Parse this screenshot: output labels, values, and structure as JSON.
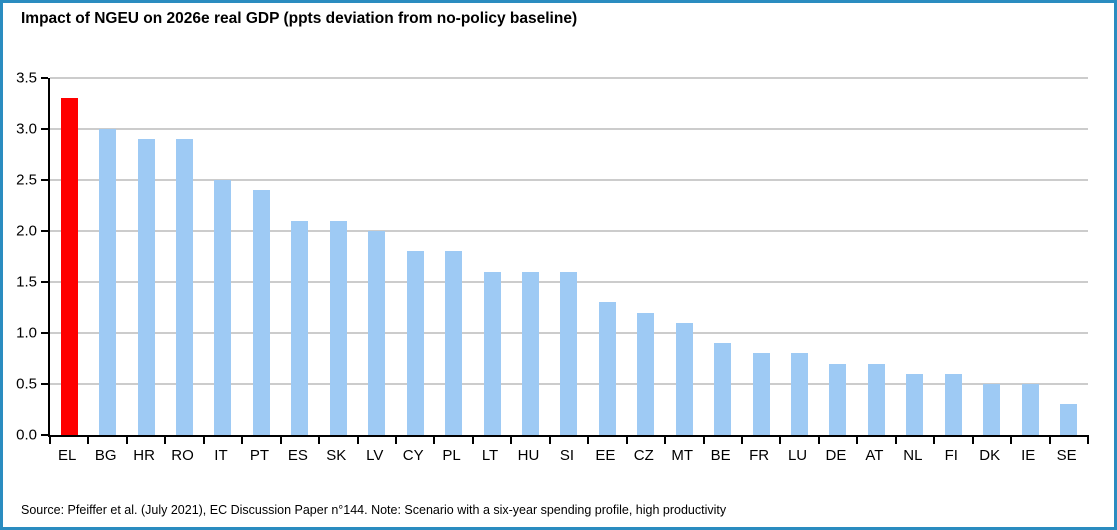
{
  "title": "Impact of NGEU on 2026e real GDP (ppts deviation from no-policy baseline)",
  "source_note": "Source: Pfeiffer et al. (July 2021), EC Discussion Paper n°144. Note: Scenario with a six-year spending profile, high productivity",
  "colors": {
    "frame_border": "#2a8cc0",
    "bar_default": "#9ecaf4",
    "bar_highlight": "#fe0000",
    "gridline": "#cccccc",
    "axis": "#000000"
  },
  "chart_data": {
    "type": "bar",
    "title": "Impact of NGEU on 2026e real GDP (ppts deviation from no-policy baseline)",
    "categories": [
      "EL",
      "BG",
      "HR",
      "RO",
      "IT",
      "PT",
      "ES",
      "SK",
      "LV",
      "CY",
      "PL",
      "LT",
      "HU",
      "SI",
      "EE",
      "CZ",
      "MT",
      "BE",
      "FR",
      "LU",
      "DE",
      "AT",
      "NL",
      "FI",
      "DK",
      "IE",
      "SE"
    ],
    "values": [
      3.3,
      3.0,
      2.9,
      2.9,
      2.5,
      2.4,
      2.1,
      2.1,
      2.0,
      1.8,
      1.8,
      1.6,
      1.6,
      1.6,
      1.3,
      1.2,
      1.1,
      0.9,
      0.8,
      0.8,
      0.7,
      0.7,
      0.6,
      0.6,
      0.5,
      0.5,
      0.3
    ],
    "xlabel": "",
    "ylabel": "",
    "ylim": [
      0,
      3.5
    ],
    "ytick_step": 0.5,
    "ytick_labels": [
      "0.0",
      "0.5",
      "1.0",
      "1.5",
      "2.0",
      "2.5",
      "3.0",
      "3.5"
    ],
    "grid": true,
    "legend": null,
    "bar_color": "#9ecaf4",
    "highlight": {
      "category": "EL",
      "color": "#fe0000"
    }
  }
}
